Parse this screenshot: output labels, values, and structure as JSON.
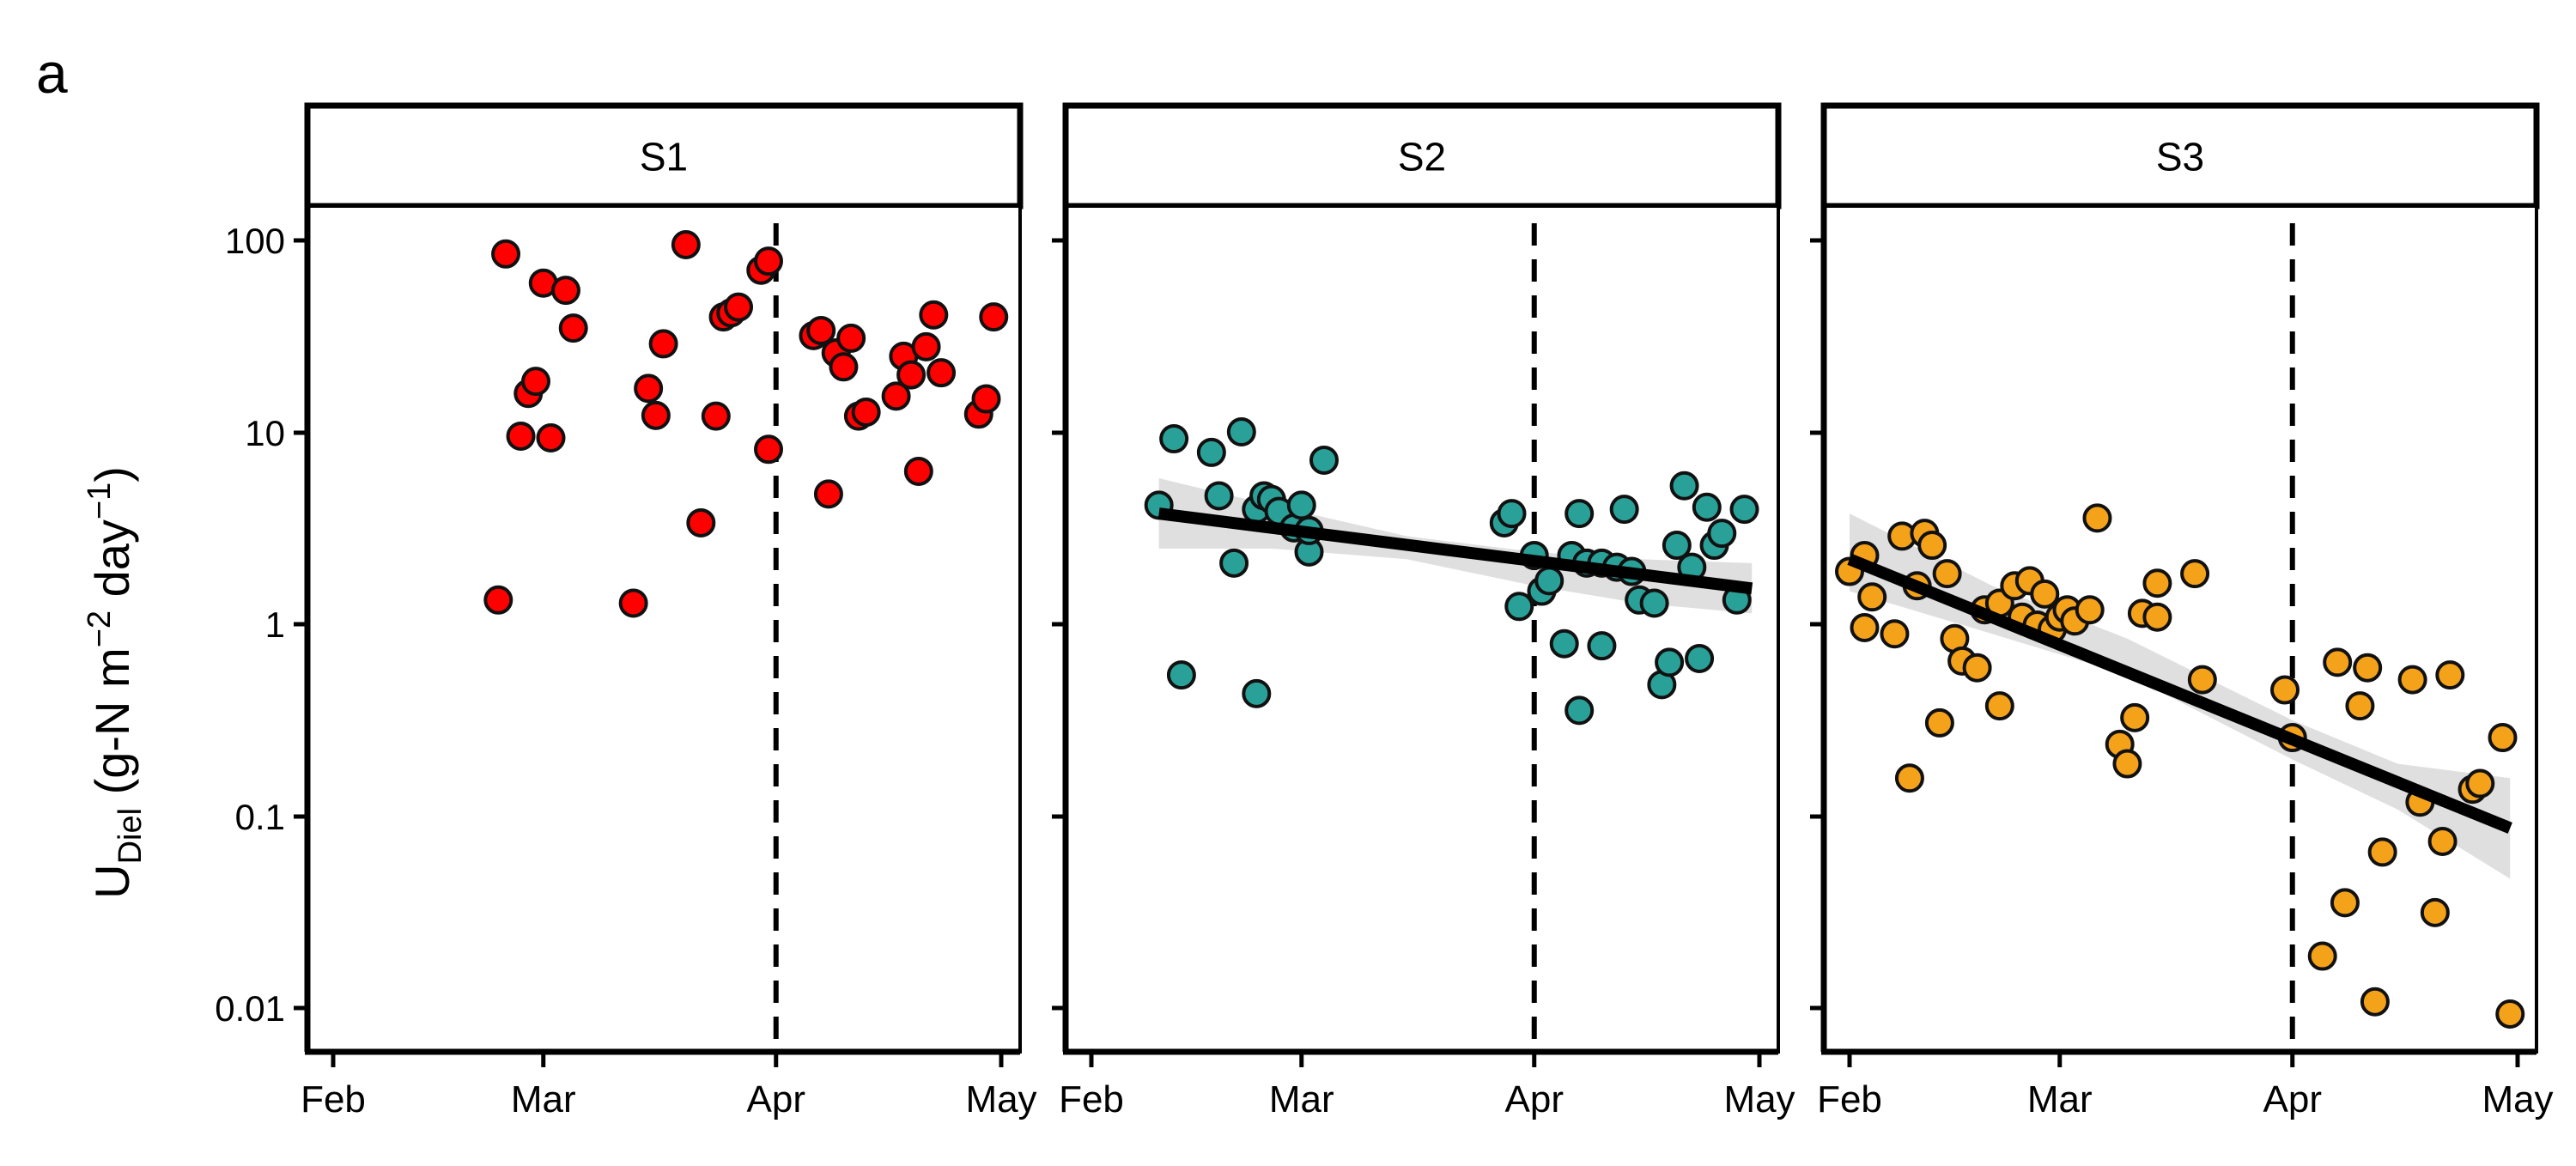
{
  "panel_label": "a",
  "y_axis": {
    "label_main": "U",
    "label_sub": "Diel",
    "label_rest_a": " (g-N  m",
    "label_sup_a": "−2",
    "label_rest_b": " day",
    "label_sup_b": "−1",
    "label_close": ")"
  },
  "chart_data": [
    {
      "type": "scatter",
      "facet": "S1",
      "color": "#ff0000",
      "y_scale": "log10",
      "ylim": [
        0.006,
        140
      ],
      "y_ticks": [
        "0.01",
        "0.1",
        "1",
        "10",
        "100"
      ],
      "x_ticks": [
        "Feb",
        "Mar",
        "Apr",
        "May"
      ],
      "x_tick_dates": [
        "2022-02-01",
        "2022-03-01",
        "2022-04-01",
        "2022-05-01"
      ],
      "xlim": [
        "2022-01-30",
        "2022-05-03"
      ],
      "vline": "2022-04-01",
      "points": [
        [
          "2022-02-23",
          1.35
        ],
        [
          "2022-02-24",
          85
        ],
        [
          "2022-02-26",
          9.6
        ],
        [
          "2022-02-27",
          16
        ],
        [
          "2022-02-28",
          18.5
        ],
        [
          "2022-03-01",
          60
        ],
        [
          "2022-03-02",
          9.4
        ],
        [
          "2022-03-04",
          55
        ],
        [
          "2022-03-05",
          35
        ],
        [
          "2022-03-13",
          1.3
        ],
        [
          "2022-03-15",
          17
        ],
        [
          "2022-03-16",
          12.3
        ],
        [
          "2022-03-17",
          29
        ],
        [
          "2022-03-20",
          95
        ],
        [
          "2022-03-22",
          3.4
        ],
        [
          "2022-03-24",
          12.2
        ],
        [
          "2022-03-25",
          40
        ],
        [
          "2022-03-26",
          42
        ],
        [
          "2022-03-27",
          45
        ],
        [
          "2022-03-30",
          70
        ],
        [
          "2022-03-31",
          78
        ],
        [
          "2022-03-31",
          8.2
        ],
        [
          "2022-04-06",
          32
        ],
        [
          "2022-04-07",
          34
        ],
        [
          "2022-04-08",
          4.8
        ],
        [
          "2022-04-09",
          26
        ],
        [
          "2022-04-10",
          22
        ],
        [
          "2022-04-11",
          31
        ],
        [
          "2022-04-12",
          12.2
        ],
        [
          "2022-04-13",
          12.8
        ],
        [
          "2022-04-17",
          15.5
        ],
        [
          "2022-04-18",
          25
        ],
        [
          "2022-04-19",
          20
        ],
        [
          "2022-04-20",
          6.3
        ],
        [
          "2022-04-21",
          28
        ],
        [
          "2022-04-22",
          41
        ],
        [
          "2022-04-23",
          20.5
        ],
        [
          "2022-04-28",
          12.5
        ],
        [
          "2022-04-29",
          15
        ],
        [
          "2022-04-30",
          40
        ]
      ]
    },
    {
      "type": "scatter",
      "facet": "S2",
      "color": "#2aa198",
      "y_scale": "log10",
      "ylim": [
        0.006,
        140
      ],
      "y_ticks": [
        "0.01",
        "0.1",
        "1",
        "10",
        "100"
      ],
      "x_ticks": [
        "Feb",
        "Mar",
        "Apr",
        "May"
      ],
      "x_tick_dates": [
        "2022-02-01",
        "2022-03-01",
        "2022-04-01",
        "2022-05-01"
      ],
      "xlim": [
        "2022-01-30",
        "2022-05-03"
      ],
      "vline": "2022-04-01",
      "trend": {
        "from": [
          "2022-02-10",
          3.8
        ],
        "to": [
          "2022-04-30",
          1.55
        ]
      },
      "band": [
        [
          "2022-02-10",
          5.8,
          2.5
        ],
        [
          "2022-02-25",
          4.2,
          2.5
        ],
        [
          "2022-03-15",
          2.9,
          2.2
        ],
        [
          "2022-04-01",
          2.4,
          1.6
        ],
        [
          "2022-04-15",
          2.2,
          1.3
        ],
        [
          "2022-04-30",
          2.1,
          1.15
        ]
      ],
      "points": [
        [
          "2022-02-10",
          4.2
        ],
        [
          "2022-02-12",
          9.3
        ],
        [
          "2022-02-13",
          0.55
        ],
        [
          "2022-02-17",
          7.9
        ],
        [
          "2022-02-18",
          4.7
        ],
        [
          "2022-02-20",
          2.1
        ],
        [
          "2022-02-21",
          10.1
        ],
        [
          "2022-02-23",
          0.44
        ],
        [
          "2022-02-23",
          4.0
        ],
        [
          "2022-02-24",
          4.7
        ],
        [
          "2022-02-25",
          4.5
        ],
        [
          "2022-02-26",
          3.9
        ],
        [
          "2022-02-28",
          3.2
        ],
        [
          "2022-03-01",
          4.2
        ],
        [
          "2022-03-02",
          2.4
        ],
        [
          "2022-03-02",
          3.1
        ],
        [
          "2022-03-04",
          7.2
        ],
        [
          "2022-03-28",
          3.4
        ],
        [
          "2022-03-29",
          3.8
        ],
        [
          "2022-03-30",
          1.25
        ],
        [
          "2022-04-01",
          2.3
        ],
        [
          "2022-04-02",
          1.5
        ],
        [
          "2022-04-03",
          1.7
        ],
        [
          "2022-04-05",
          0.8
        ],
        [
          "2022-04-06",
          2.3
        ],
        [
          "2022-04-07",
          0.36
        ],
        [
          "2022-04-07",
          3.8
        ],
        [
          "2022-04-08",
          2.1
        ],
        [
          "2022-04-10",
          0.78
        ],
        [
          "2022-04-10",
          2.1
        ],
        [
          "2022-04-12",
          2.0
        ],
        [
          "2022-04-13",
          4.0
        ],
        [
          "2022-04-14",
          1.9
        ],
        [
          "2022-04-15",
          1.35
        ],
        [
          "2022-04-17",
          1.3
        ],
        [
          "2022-04-18",
          0.49
        ],
        [
          "2022-04-19",
          0.64
        ],
        [
          "2022-04-20",
          2.6
        ],
        [
          "2022-04-21",
          5.3
        ],
        [
          "2022-04-22",
          2.0
        ],
        [
          "2022-04-23",
          0.67
        ],
        [
          "2022-04-24",
          4.1
        ],
        [
          "2022-04-25",
          2.6
        ],
        [
          "2022-04-26",
          3.0
        ],
        [
          "2022-04-28",
          1.35
        ],
        [
          "2022-04-29",
          4.0
        ]
      ]
    },
    {
      "type": "scatter",
      "facet": "S3",
      "color": "#f5a21b",
      "y_scale": "log10",
      "ylim": [
        0.006,
        140
      ],
      "y_ticks": [
        "0.01",
        "0.1",
        "1",
        "10",
        "100"
      ],
      "x_ticks": [
        "Feb",
        "Mar",
        "Apr",
        "May"
      ],
      "x_tick_dates": [
        "2022-02-01",
        "2022-03-01",
        "2022-04-01",
        "2022-05-01"
      ],
      "xlim": [
        "2022-01-30",
        "2022-05-03"
      ],
      "vline": "2022-04-01",
      "trend": {
        "from": [
          "2022-02-01",
          2.2
        ],
        "to": [
          "2022-04-30",
          0.088
        ]
      },
      "band": [
        [
          "2022-02-01",
          3.8,
          1.5
        ],
        [
          "2022-02-20",
          1.6,
          0.9
        ],
        [
          "2022-03-10",
          0.85,
          0.55
        ],
        [
          "2022-04-01",
          0.32,
          0.2
        ],
        [
          "2022-04-15",
          0.19,
          0.11
        ],
        [
          "2022-04-30",
          0.16,
          0.048
        ]
      ],
      "points": [
        [
          "2022-02-01",
          1.9
        ],
        [
          "2022-02-03",
          2.3
        ],
        [
          "2022-02-03",
          0.97
        ],
        [
          "2022-02-04",
          1.4
        ],
        [
          "2022-02-07",
          0.9
        ],
        [
          "2022-02-08",
          2.9
        ],
        [
          "2022-02-09",
          0.16
        ],
        [
          "2022-02-10",
          1.6
        ],
        [
          "2022-02-11",
          3.0
        ],
        [
          "2022-02-12",
          2.6
        ],
        [
          "2022-02-13",
          0.31
        ],
        [
          "2022-02-14",
          1.85
        ],
        [
          "2022-02-15",
          0.85
        ],
        [
          "2022-02-16",
          0.65
        ],
        [
          "2022-02-18",
          0.6
        ],
        [
          "2022-02-19",
          1.2
        ],
        [
          "2022-02-21",
          0.38
        ],
        [
          "2022-02-21",
          1.3
        ],
        [
          "2022-02-23",
          1.6
        ],
        [
          "2022-02-24",
          1.1
        ],
        [
          "2022-02-25",
          1.7
        ],
        [
          "2022-02-26",
          1.0
        ],
        [
          "2022-02-27",
          1.45
        ],
        [
          "2022-02-28",
          0.95
        ],
        [
          "2022-03-01",
          1.1
        ],
        [
          "2022-03-02",
          1.2
        ],
        [
          "2022-03-03",
          1.05
        ],
        [
          "2022-03-05",
          1.2
        ],
        [
          "2022-03-06",
          3.6
        ],
        [
          "2022-03-09",
          0.24
        ],
        [
          "2022-03-10",
          0.19
        ],
        [
          "2022-03-11",
          0.33
        ],
        [
          "2022-03-12",
          1.15
        ],
        [
          "2022-03-14",
          1.65
        ],
        [
          "2022-03-14",
          1.1
        ],
        [
          "2022-03-19",
          1.85
        ],
        [
          "2022-03-20",
          0.52
        ],
        [
          "2022-03-31",
          0.46
        ],
        [
          "2022-04-01",
          0.26
        ],
        [
          "2022-04-05",
          0.019
        ],
        [
          "2022-04-07",
          0.64
        ],
        [
          "2022-04-08",
          0.036
        ],
        [
          "2022-04-10",
          0.38
        ],
        [
          "2022-04-11",
          0.6
        ],
        [
          "2022-04-12",
          0.011
        ],
        [
          "2022-04-13",
          0.066
        ],
        [
          "2022-04-17",
          0.52
        ],
        [
          "2022-04-18",
          0.12
        ],
        [
          "2022-04-20",
          0.032
        ],
        [
          "2022-04-21",
          0.075
        ],
        [
          "2022-04-22",
          0.55
        ],
        [
          "2022-04-25",
          0.14
        ],
        [
          "2022-04-26",
          0.15
        ],
        [
          "2022-04-29",
          0.26
        ],
        [
          "2022-04-30",
          0.0095
        ]
      ]
    }
  ]
}
